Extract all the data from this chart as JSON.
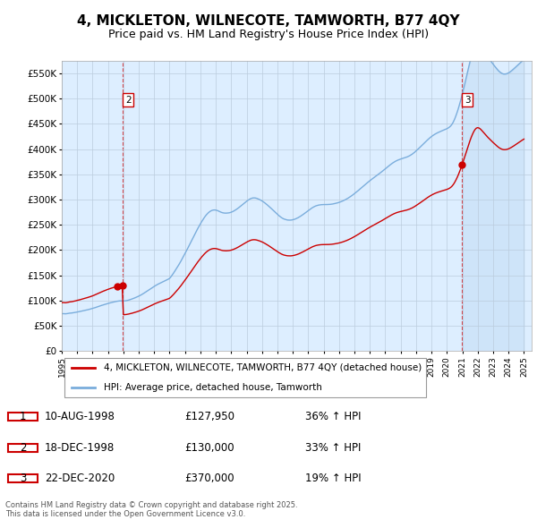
{
  "title": "4, MICKLETON, WILNECOTE, TAMWORTH, B77 4QY",
  "subtitle": "Price paid vs. HM Land Registry's House Price Index (HPI)",
  "ylim": [
    0,
    575000
  ],
  "yticks": [
    0,
    50000,
    100000,
    150000,
    200000,
    250000,
    300000,
    350000,
    400000,
    450000,
    500000,
    550000
  ],
  "ytick_labels": [
    "£0",
    "£50K",
    "£100K",
    "£150K",
    "£200K",
    "£250K",
    "£300K",
    "£350K",
    "£400K",
    "£450K",
    "£500K",
    "£550K"
  ],
  "line_color_red": "#cc0000",
  "line_color_blue": "#7aaddc",
  "bg_color": "#ddeeff",
  "shade_color": "#ddeeff",
  "plot_bg": "#ffffff",
  "grid_color": "#bbccdd",
  "title_fontsize": 11,
  "subtitle_fontsize": 9,
  "legend_label_red": "4, MICKLETON, WILNECOTE, TAMWORTH, B77 4QY (detached house)",
  "legend_label_blue": "HPI: Average price, detached house, Tamworth",
  "transactions": [
    {
      "num": 1,
      "date": "10-AUG-1998",
      "price": "£127,950",
      "hpi": "36% ↑ HPI",
      "year": 1998.615
    },
    {
      "num": 2,
      "date": "18-DEC-1998",
      "price": "£130,000",
      "hpi": "33% ↑ HPI",
      "year": 1998.962
    },
    {
      "num": 3,
      "date": "22-DEC-2020",
      "price": "£370,000",
      "hpi": "19% ↑ HPI",
      "year": 2020.975
    }
  ],
  "footer": "Contains HM Land Registry data © Crown copyright and database right 2025.\nThis data is licensed under the Open Government Licence v3.0.",
  "hpi_months": [
    1995.0,
    1995.083,
    1995.167,
    1995.25,
    1995.333,
    1995.417,
    1995.5,
    1995.583,
    1995.667,
    1995.75,
    1995.833,
    1995.917,
    1996.0,
    1996.083,
    1996.167,
    1996.25,
    1996.333,
    1996.417,
    1996.5,
    1996.583,
    1996.667,
    1996.75,
    1996.833,
    1996.917,
    1997.0,
    1997.083,
    1997.167,
    1997.25,
    1997.333,
    1997.417,
    1997.5,
    1997.583,
    1997.667,
    1997.75,
    1997.833,
    1997.917,
    1998.0,
    1998.083,
    1998.167,
    1998.25,
    1998.333,
    1998.417,
    1998.5,
    1998.583,
    1998.667,
    1998.75,
    1998.833,
    1998.917,
    1999.0,
    1999.083,
    1999.167,
    1999.25,
    1999.333,
    1999.417,
    1999.5,
    1999.583,
    1999.667,
    1999.75,
    1999.833,
    1999.917,
    2000.0,
    2000.083,
    2000.167,
    2000.25,
    2000.333,
    2000.417,
    2000.5,
    2000.583,
    2000.667,
    2000.75,
    2000.833,
    2000.917,
    2001.0,
    2001.083,
    2001.167,
    2001.25,
    2001.333,
    2001.417,
    2001.5,
    2001.583,
    2001.667,
    2001.75,
    2001.833,
    2001.917,
    2002.0,
    2002.083,
    2002.167,
    2002.25,
    2002.333,
    2002.417,
    2002.5,
    2002.583,
    2002.667,
    2002.75,
    2002.833,
    2002.917,
    2003.0,
    2003.083,
    2003.167,
    2003.25,
    2003.333,
    2003.417,
    2003.5,
    2003.583,
    2003.667,
    2003.75,
    2003.833,
    2003.917,
    2004.0,
    2004.083,
    2004.167,
    2004.25,
    2004.333,
    2004.417,
    2004.5,
    2004.583,
    2004.667,
    2004.75,
    2004.833,
    2004.917,
    2005.0,
    2005.083,
    2005.167,
    2005.25,
    2005.333,
    2005.417,
    2005.5,
    2005.583,
    2005.667,
    2005.75,
    2005.833,
    2005.917,
    2006.0,
    2006.083,
    2006.167,
    2006.25,
    2006.333,
    2006.417,
    2006.5,
    2006.583,
    2006.667,
    2006.75,
    2006.833,
    2006.917,
    2007.0,
    2007.083,
    2007.167,
    2007.25,
    2007.333,
    2007.417,
    2007.5,
    2007.583,
    2007.667,
    2007.75,
    2007.833,
    2007.917,
    2008.0,
    2008.083,
    2008.167,
    2008.25,
    2008.333,
    2008.417,
    2008.5,
    2008.583,
    2008.667,
    2008.75,
    2008.833,
    2008.917,
    2009.0,
    2009.083,
    2009.167,
    2009.25,
    2009.333,
    2009.417,
    2009.5,
    2009.583,
    2009.667,
    2009.75,
    2009.833,
    2009.917,
    2010.0,
    2010.083,
    2010.167,
    2010.25,
    2010.333,
    2010.417,
    2010.5,
    2010.583,
    2010.667,
    2010.75,
    2010.833,
    2010.917,
    2011.0,
    2011.083,
    2011.167,
    2011.25,
    2011.333,
    2011.417,
    2011.5,
    2011.583,
    2011.667,
    2011.75,
    2011.833,
    2011.917,
    2012.0,
    2012.083,
    2012.167,
    2012.25,
    2012.333,
    2012.417,
    2012.5,
    2012.583,
    2012.667,
    2012.75,
    2012.833,
    2012.917,
    2013.0,
    2013.083,
    2013.167,
    2013.25,
    2013.333,
    2013.417,
    2013.5,
    2013.583,
    2013.667,
    2013.75,
    2013.833,
    2013.917,
    2014.0,
    2014.083,
    2014.167,
    2014.25,
    2014.333,
    2014.417,
    2014.5,
    2014.583,
    2014.667,
    2014.75,
    2014.833,
    2014.917,
    2015.0,
    2015.083,
    2015.167,
    2015.25,
    2015.333,
    2015.417,
    2015.5,
    2015.583,
    2015.667,
    2015.75,
    2015.833,
    2015.917,
    2016.0,
    2016.083,
    2016.167,
    2016.25,
    2016.333,
    2016.417,
    2016.5,
    2016.583,
    2016.667,
    2016.75,
    2016.833,
    2016.917,
    2017.0,
    2017.083,
    2017.167,
    2017.25,
    2017.333,
    2017.417,
    2017.5,
    2017.583,
    2017.667,
    2017.75,
    2017.833,
    2017.917,
    2018.0,
    2018.083,
    2018.167,
    2018.25,
    2018.333,
    2018.417,
    2018.5,
    2018.583,
    2018.667,
    2018.75,
    2018.833,
    2018.917,
    2019.0,
    2019.083,
    2019.167,
    2019.25,
    2019.333,
    2019.417,
    2019.5,
    2019.583,
    2019.667,
    2019.75,
    2019.833,
    2019.917,
    2020.0,
    2020.083,
    2020.167,
    2020.25,
    2020.333,
    2020.417,
    2020.5,
    2020.583,
    2020.667,
    2020.75,
    2020.833,
    2020.917,
    2021.0,
    2021.083,
    2021.167,
    2021.25,
    2021.333,
    2021.417,
    2021.5,
    2021.583,
    2021.667,
    2021.75,
    2021.833,
    2021.917,
    2022.0,
    2022.083,
    2022.167,
    2022.25,
    2022.333,
    2022.417,
    2022.5,
    2022.583,
    2022.667,
    2022.75,
    2022.833,
    2022.917,
    2023.0,
    2023.083,
    2023.167,
    2023.25,
    2023.333,
    2023.417,
    2023.5,
    2023.583,
    2023.667,
    2023.75,
    2023.833,
    2023.917,
    2024.0,
    2024.083,
    2024.167,
    2024.25,
    2024.333,
    2024.417,
    2024.5,
    2024.583,
    2024.667,
    2024.75,
    2024.833,
    2024.917,
    2025.0
  ],
  "hpi_values": [
    74000,
    74200,
    74100,
    73900,
    74200,
    74600,
    75100,
    75300,
    75600,
    76000,
    76400,
    76900,
    77500,
    77900,
    78400,
    79000,
    79600,
    80200,
    80700,
    81200,
    81800,
    82400,
    83100,
    83700,
    84400,
    85200,
    86100,
    87000,
    87900,
    88800,
    89700,
    90500,
    91300,
    92100,
    92900,
    93700,
    94400,
    95100,
    95800,
    96400,
    97000,
    97600,
    98200,
    98700,
    99100,
    99400,
    99500,
    99300,
    99200,
    99400,
    99700,
    100200,
    100900,
    101700,
    102600,
    103500,
    104500,
    105500,
    106600,
    107700,
    108900,
    110200,
    111600,
    113100,
    114700,
    116400,
    118000,
    119700,
    121400,
    123100,
    124800,
    126500,
    128100,
    129700,
    131200,
    132600,
    133900,
    135100,
    136300,
    137500,
    138700,
    139900,
    141200,
    142500,
    144100,
    147000,
    150500,
    154200,
    158100,
    162000,
    166000,
    170200,
    174500,
    179000,
    183700,
    188500,
    193300,
    198100,
    203000,
    208000,
    213000,
    218100,
    223200,
    228300,
    233300,
    238200,
    243000,
    247600,
    252100,
    256400,
    260500,
    264300,
    267800,
    270900,
    273500,
    275700,
    277400,
    278600,
    279300,
    279500,
    279200,
    278500,
    277500,
    276200,
    275100,
    274200,
    273600,
    273300,
    273200,
    273400,
    273700,
    274200,
    275000,
    276100,
    277400,
    278900,
    280600,
    282400,
    284300,
    286300,
    288400,
    290500,
    292600,
    294700,
    296700,
    298600,
    300300,
    301700,
    302700,
    303300,
    303400,
    303100,
    302400,
    301400,
    300200,
    298900,
    297400,
    295700,
    293800,
    291800,
    289700,
    287500,
    285200,
    282900,
    280500,
    278100,
    275700,
    273300,
    270900,
    268600,
    266500,
    264600,
    263000,
    261700,
    260800,
    260100,
    259600,
    259400,
    259400,
    259600,
    260100,
    260800,
    261700,
    262800,
    264100,
    265500,
    267100,
    268800,
    270600,
    272500,
    274400,
    276400,
    278300,
    280200,
    282000,
    283700,
    285200,
    286500,
    287600,
    288400,
    289100,
    289600,
    289900,
    290100,
    290200,
    290200,
    290200,
    290300,
    290400,
    290600,
    290900,
    291300,
    291800,
    292400,
    293000,
    293700,
    294500,
    295400,
    296400,
    297500,
    298700,
    300000,
    301400,
    302900,
    304500,
    306200,
    308000,
    309900,
    311900,
    313900,
    316000,
    318100,
    320300,
    322500,
    324700,
    326900,
    329100,
    331200,
    333300,
    335400,
    337400,
    339400,
    341300,
    343200,
    345100,
    347000,
    348900,
    350800,
    352700,
    354700,
    356700,
    358800,
    360900,
    363000,
    365100,
    367200,
    369200,
    371100,
    372900,
    374500,
    376000,
    377300,
    378400,
    379400,
    380300,
    381100,
    381900,
    382700,
    383500,
    384500,
    385600,
    386900,
    388400,
    390100,
    392000,
    394100,
    396400,
    398700,
    401100,
    403500,
    406000,
    408500,
    411000,
    413500,
    416000,
    418400,
    420700,
    422900,
    424900,
    426800,
    428500,
    430000,
    431400,
    432700,
    433900,
    435000,
    436100,
    437100,
    438200,
    439300,
    440400,
    441800,
    443600,
    446000,
    449300,
    453700,
    459200,
    465700,
    473000,
    481000,
    489700,
    499000,
    508900,
    519400,
    530300,
    541400,
    552400,
    563100,
    573300,
    582700,
    591100,
    598300,
    603900,
    607400,
    608600,
    607600,
    605100,
    601600,
    597600,
    593500,
    589400,
    585600,
    581900,
    578400,
    575000,
    571600,
    568200,
    564900,
    561700,
    558600,
    555700,
    553200,
    551200,
    549700,
    548800,
    548600,
    548900,
    549700,
    550900,
    552500,
    554400,
    556500,
    558700,
    561100,
    563500,
    566000,
    568400,
    570800,
    573100,
    575300,
    577400
  ],
  "sale_years": [
    1998.615,
    1998.962,
    2020.975
  ],
  "sale_prices": [
    127950,
    130000,
    370000
  ]
}
